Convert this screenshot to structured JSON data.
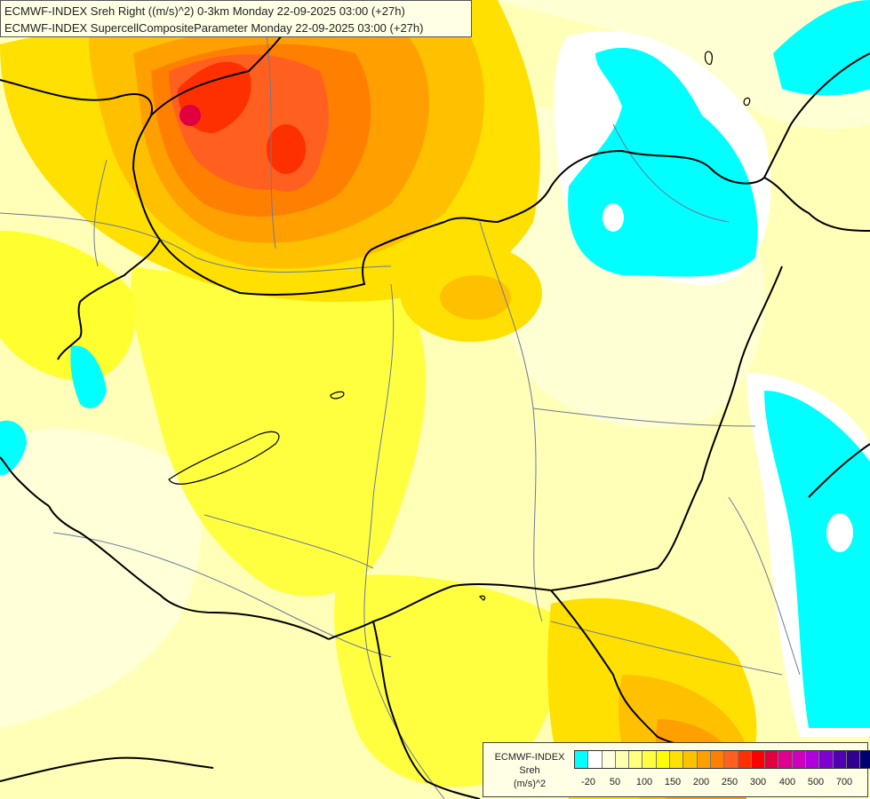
{
  "title": {
    "line1": "ECMWF-INDEX Sreh Right ((m/s)^2) 0-3km Monday 22-09-2025 03:00 (+27h)",
    "line2": "ECMWF-INDEX SupercellCompositeParameter Monday 22-09-2025 03:00 (+27h)"
  },
  "legend": {
    "label_line1": "ECMWF-INDEX",
    "label_line2": "Sreh",
    "label_line3": "(m/s)^2",
    "colors": [
      "#00ffff",
      "#ffffff",
      "#ffffe0",
      "#ffffb0",
      "#ffff80",
      "#ffff40",
      "#ffff00",
      "#ffe000",
      "#ffc000",
      "#ffa000",
      "#ff8000",
      "#ff6020",
      "#ff3000",
      "#ff0000",
      "#e00040",
      "#e00090",
      "#d000c0",
      "#b000e0",
      "#8000d0",
      "#5000b0",
      "#300090",
      "#000070"
    ],
    "ticks": [
      "-20",
      "50",
      "100",
      "150",
      "200",
      "250",
      "300",
      "400",
      "500",
      "700"
    ]
  },
  "colors": {
    "background": "#ffffc0",
    "border": "#000000",
    "river": "#6b7a9a"
  }
}
